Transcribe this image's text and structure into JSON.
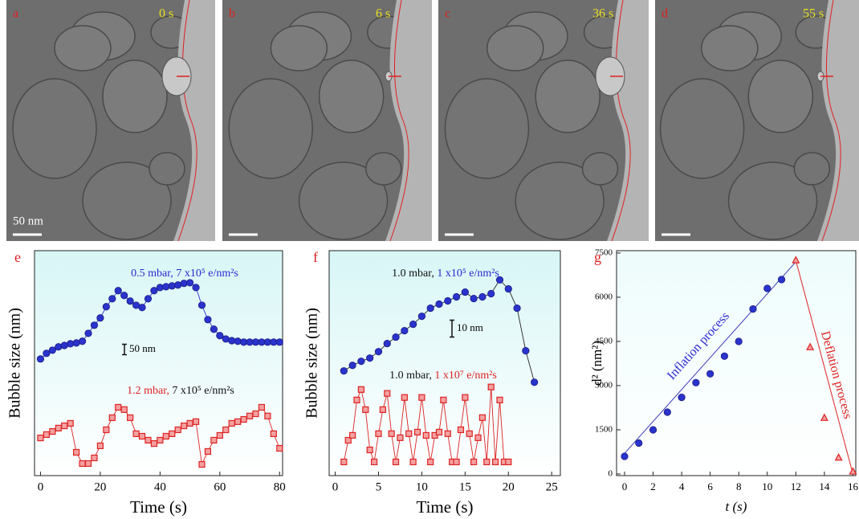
{
  "images": [
    {
      "label": "a",
      "time": "0 s",
      "scale_bar": "50 nm"
    },
    {
      "label": "b",
      "time": "6 s"
    },
    {
      "label": "c",
      "time": "36 s"
    },
    {
      "label": "d",
      "time": "55 s"
    }
  ],
  "chart_data": [
    {
      "type": "scatter-line",
      "panel": "e",
      "xlabel": "Time (s)",
      "ylabel": "Bubble size (nm)",
      "xlim": [
        -2,
        81
      ],
      "xticks": [
        0,
        20,
        40,
        60,
        80
      ],
      "ylim": [
        0,
        1080
      ],
      "scale_bar": {
        "value": 50,
        "label": "50 nm"
      },
      "series": [
        {
          "pressure": "0.5 mbar,",
          "dose": "7 x10⁵ e/nm²s",
          "pressure_color": "#2a2ad0",
          "dose_color": "#2a2ad0",
          "color": "#2a33cc",
          "marker": "circle",
          "x": [
            0,
            2,
            4,
            6,
            8,
            10,
            12,
            14,
            16,
            18,
            20,
            22,
            24,
            26,
            28,
            30,
            32,
            34,
            36,
            38,
            40,
            42,
            44,
            46,
            48,
            50,
            52,
            54,
            56,
            58,
            60,
            62,
            64,
            66,
            68,
            70,
            72,
            74,
            76,
            78,
            80
          ],
          "values": [
            560,
            587,
            602,
            618,
            625,
            633,
            637,
            645,
            683,
            722,
            757,
            811,
            849,
            888,
            865,
            838,
            818,
            807,
            849,
            888,
            903,
            907,
            911,
            915,
            923,
            926,
            903,
            818,
            749,
            703,
            672,
            656,
            648,
            645,
            641,
            641,
            641,
            641,
            641,
            641,
            641
          ]
        },
        {
          "pressure": "1.2 mbar,",
          "dose": "7 x10⁵ e/nm²s",
          "pressure_color": "#dd2222",
          "dose_color": "#111111",
          "color": "#dd2222",
          "marker": "square",
          "x": [
            0,
            2,
            4,
            6,
            8,
            10,
            12,
            14,
            16,
            18,
            20,
            22,
            24,
            26,
            28,
            30,
            32,
            34,
            36,
            38,
            40,
            42,
            44,
            46,
            48,
            50,
            52,
            54,
            56,
            58,
            60,
            62,
            64,
            66,
            68,
            70,
            72,
            74,
            76,
            78,
            80
          ],
          "values": [
            181,
            197,
            212,
            228,
            239,
            251,
            112,
            58,
            58,
            85,
            143,
            220,
            278,
            328,
            317,
            278,
            201,
            189,
            170,
            154,
            170,
            189,
            201,
            220,
            239,
            251,
            259,
            54,
            116,
            170,
            193,
            220,
            251,
            259,
            270,
            286,
            297,
            328,
            286,
            201,
            131
          ]
        }
      ]
    },
    {
      "type": "scatter-line",
      "panel": "f",
      "xlabel": "Time (s)",
      "ylabel": "Bubble size (nm)",
      "xlim": [
        -0.7,
        26
      ],
      "xticks": [
        0,
        5,
        10,
        15,
        20,
        25
      ],
      "ylim": [
        0,
        133
      ],
      "scale_bar": {
        "value": 10,
        "label": "10 nm"
      },
      "series": [
        {
          "pressure": "1.0 mbar,",
          "dose": "1 x10⁵ e/nm²s",
          "pressure_color": "#111111",
          "dose_color": "#2a2ad0",
          "color": "#2a33cc",
          "marker": "circle",
          "x": [
            1,
            2,
            3,
            4,
            5,
            6,
            7,
            8,
            9,
            10,
            11,
            12,
            13,
            14,
            15,
            16,
            17,
            18,
            19,
            20,
            21,
            22,
            23
          ],
          "values": [
            61.9,
            65.2,
            67.6,
            69.5,
            73.3,
            78.1,
            81.9,
            85.7,
            89.5,
            94.2,
            99.0,
            101.4,
            103.3,
            105.7,
            108.5,
            104.7,
            105.7,
            107.6,
            115.7,
            110.4,
            99.0,
            73.8,
            55.2
          ]
        },
        {
          "pressure": "1.0 mbar,",
          "dose": "1 x10⁷ e/nm²s",
          "pressure_color": "#111111",
          "dose_color": "#dd2222",
          "color": "#dd2222",
          "marker": "square",
          "x": [
            1,
            1.5,
            2,
            2.5,
            3,
            3.5,
            4,
            4.5,
            5,
            5.5,
            6,
            6.5,
            7,
            7.5,
            8,
            8.5,
            9,
            9.5,
            10,
            10.5,
            11,
            11.5,
            12,
            12.5,
            13,
            13.5,
            14,
            14.5,
            15,
            15.5,
            16,
            16.5,
            17,
            17.5,
            18,
            18.5,
            19,
            19.5,
            20
          ],
          "values": [
            8.1,
            20.9,
            23.8,
            44.7,
            50.9,
            39.0,
            15.2,
            8.1,
            24.8,
            39.0,
            48.6,
            24.8,
            8.1,
            22.4,
            46.2,
            24.8,
            8.1,
            25.7,
            46.2,
            23.8,
            8.1,
            23.8,
            25.7,
            44.7,
            24.8,
            8.1,
            8.1,
            27.1,
            46.2,
            24.8,
            8.1,
            22.4,
            34.3,
            8.1,
            52.4,
            8.1,
            44.7,
            8.1,
            8.1
          ]
        }
      ]
    },
    {
      "type": "scatter-fit",
      "panel": "g",
      "xlabel": "t (s)",
      "ylabel": "d² (nm²)",
      "xlim": [
        -0.56,
        16.2
      ],
      "xticks": [
        0,
        2,
        4,
        6,
        8,
        10,
        12,
        14,
        16
      ],
      "ylim": [
        -55,
        7580
      ],
      "yticks": [
        0,
        1500,
        3000,
        4500,
        6000,
        7500
      ],
      "series": [
        {
          "color": "#2a33cc",
          "marker": "circle",
          "x": [
            0,
            1,
            2,
            3,
            4,
            5,
            6,
            7,
            8,
            9,
            10,
            11
          ],
          "values": [
            600,
            1050,
            1500,
            2100,
            2600,
            3100,
            3400,
            4000,
            4500,
            5600,
            6300,
            6600
          ]
        },
        {
          "color": "#dd2222",
          "marker": "triangle",
          "x": [
            12,
            13,
            14,
            15,
            16
          ],
          "values": [
            7250,
            4300,
            1900,
            550,
            80
          ]
        }
      ],
      "fits": [
        {
          "color": "#3a3ab8",
          "x": [
            0,
            12
          ],
          "values": [
            700,
            7200
          ]
        },
        {
          "color": "#dd2222",
          "x": [
            12,
            16
          ],
          "values": [
            7250,
            0
          ]
        }
      ],
      "annotations": [
        {
          "text": "Inflation process",
          "color": "#2a2ad0"
        },
        {
          "text": "Deflation process",
          "color": "#dd2222"
        }
      ]
    }
  ]
}
